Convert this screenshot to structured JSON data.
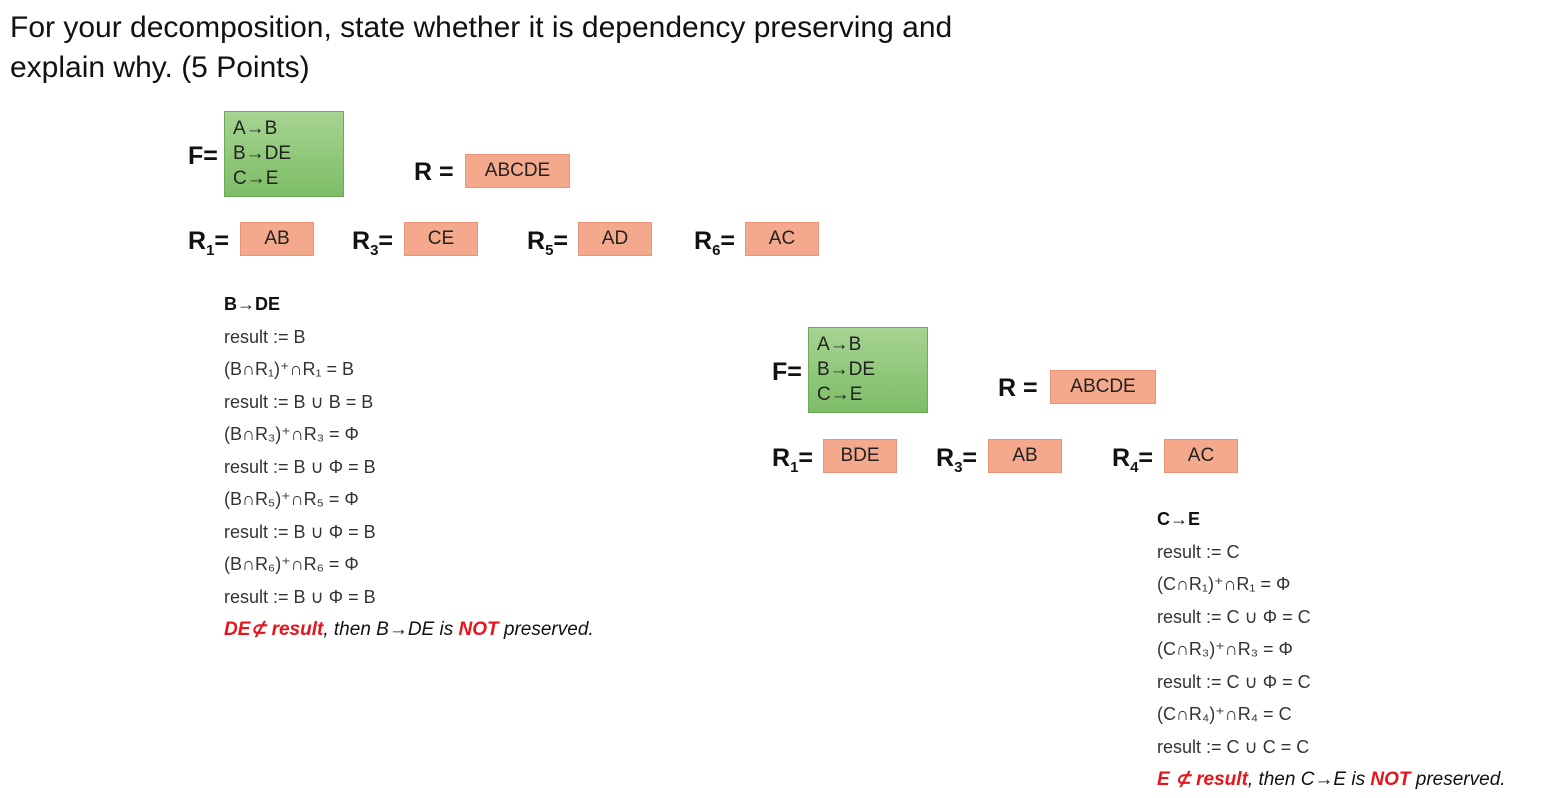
{
  "title": {
    "line1": "For your decomposition, state whether it is dependency preserving and",
    "line2": "explain why. (5 Points)"
  },
  "left": {
    "f_label": "F=",
    "fds": [
      "A→B",
      "B→DE",
      "C→E"
    ],
    "r_label": "R =",
    "r_value": "ABCDE",
    "relations": [
      {
        "name": "R",
        "sub": "1",
        "value": "AB"
      },
      {
        "name": "R",
        "sub": "3",
        "value": "CE"
      },
      {
        "name": "R",
        "sub": "5",
        "value": "AD"
      },
      {
        "name": "R",
        "sub": "6",
        "value": "AC"
      }
    ],
    "steps_header": "B→DE",
    "steps": [
      "result := B",
      "(B∩R₁)⁺∩R₁ = B",
      "result := B ∪ B = B",
      "(B∩R₃)⁺∩R₃ = Φ",
      "result := B ∪ Φ = B",
      "(B∩R₅)⁺∩R₅ = Φ",
      "result := B ∪ Φ = B",
      "(B∩R₆)⁺∩R₆ = Φ",
      "result := B ∪ Φ = B"
    ],
    "conclusion": {
      "part1": "DE⊄ result",
      "part2": ", then B→DE is ",
      "part3": "NOT",
      "part4": " preserved."
    }
  },
  "right": {
    "f_label": "F=",
    "fds": [
      "A→B",
      "B→DE",
      "C→E"
    ],
    "r_label": "R =",
    "r_value": "ABCDE",
    "relations": [
      {
        "name": "R",
        "sub": "1",
        "value": "BDE"
      },
      {
        "name": "R",
        "sub": "3",
        "value": "AB"
      },
      {
        "name": "R",
        "sub": "4",
        "value": "AC"
      }
    ],
    "steps_header": "C→E",
    "steps": [
      "result := C",
      "(C∩R₁)⁺∩R₁ = Φ",
      "result := C ∪ Φ = C",
      "(C∩R₃)⁺∩R₃ = Φ",
      "result := C ∪ Φ = C",
      "(C∩R₄)⁺∩R₄ = C",
      "result := C ∪ C = C"
    ],
    "conclusion": {
      "part1": "E ⊄ result",
      "part2": ", then C→E is ",
      "part3": "NOT",
      "part4": " preserved."
    }
  }
}
